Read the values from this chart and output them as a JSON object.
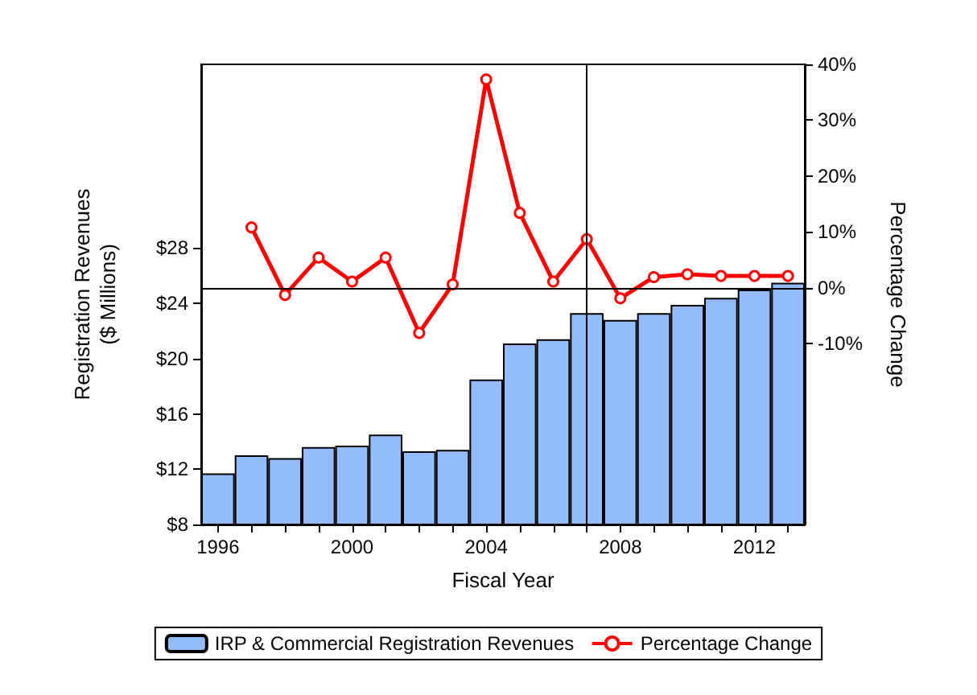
{
  "chart_data": {
    "type": "bar",
    "xlabel": "Fiscal Year",
    "ylabel": "Registration Revenues\n($ Millions)",
    "y2label": "Percentage Change",
    "x": [
      1996,
      1997,
      1998,
      1999,
      2000,
      2001,
      2002,
      2003,
      2004,
      2005,
      2006,
      2007,
      2008,
      2009,
      2010,
      2011,
      2012,
      2013
    ],
    "xlim": [
      1995.5,
      2013.5
    ],
    "xticks": [
      1996,
      {
        "value": 1997,
        "label": null
      },
      {
        "value": 1998,
        "label": null
      },
      {
        "value": 1999,
        "label": null
      },
      2000,
      {
        "value": 2001,
        "label": null
      },
      {
        "value": 2002,
        "label": null
      },
      {
        "value": 2003,
        "label": null
      },
      2004,
      {
        "value": 2005,
        "label": null
      },
      {
        "value": 2006,
        "label": null
      },
      {
        "value": 2007,
        "label": null
      },
      2008,
      {
        "value": 2009,
        "label": null
      },
      {
        "value": 2010,
        "label": null
      },
      {
        "value": 2011,
        "label": null
      },
      2012,
      {
        "value": 2013,
        "label": null
      }
    ],
    "ylim": [
      8,
      41.3
    ],
    "yticks": [
      {
        "value": 8,
        "label": "$8"
      },
      {
        "value": 12,
        "label": "$12"
      },
      {
        "value": 16,
        "label": "$16"
      },
      {
        "value": 20,
        "label": "$20"
      },
      {
        "value": 24,
        "label": "$24"
      },
      {
        "value": 28,
        "label": "$28"
      }
    ],
    "y2lim": [
      -42.4,
      40
    ],
    "y2ticks": [
      {
        "value": -10,
        "label": "-10%"
      },
      {
        "value": 0,
        "label": "0%"
      },
      {
        "value": 10,
        "label": "10%"
      },
      {
        "value": 20,
        "label": "20%"
      },
      {
        "value": 30,
        "label": "30%"
      },
      {
        "value": 40,
        "label": "40%"
      }
    ],
    "series": [
      {
        "name": "IRP & Commercial Registration Revenues",
        "color": "#94bbfb",
        "values": [
          11.7,
          13.0,
          12.8,
          13.6,
          13.7,
          14.5,
          13.3,
          13.4,
          18.5,
          21.1,
          21.4,
          23.3,
          22.8,
          23.3,
          23.9,
          24.4,
          25.0,
          25.5
        ]
      },
      {
        "name": "Percentage Change",
        "type": "line",
        "axis": "y2",
        "color": "#ff0000",
        "marker": "circle",
        "line_style": "solid",
        "values": [
          null,
          10.8,
          -1.3,
          5.4,
          1.1,
          5.4,
          -8.1,
          0.6,
          37.3,
          13.4,
          1.1,
          8.7,
          -1.9,
          1.9,
          2.4,
          2.1,
          2.1,
          2.1
        ]
      }
    ],
    "ref_lines": [
      {
        "axis": "y2",
        "value": 0,
        "color": "#000000"
      },
      {
        "axis": "x",
        "value": 2007,
        "color": "#000000"
      }
    ],
    "grid": false,
    "legend": "bottom"
  }
}
